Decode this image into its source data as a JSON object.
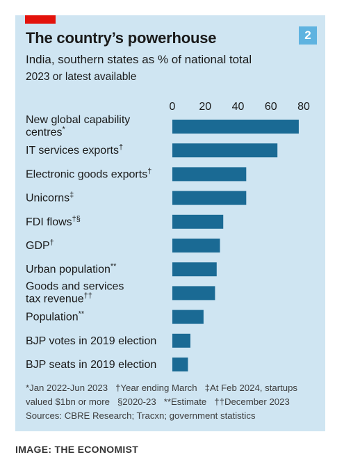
{
  "header": {
    "title": "The country’s powerhouse",
    "subtitle": "India, southern states as % of national total",
    "period": "2023 or latest available",
    "badge": "2"
  },
  "chart_data": {
    "type": "bar",
    "orientation": "horizontal",
    "title": "The country’s powerhouse",
    "subtitle": "India, southern states as % of national total",
    "xlim": [
      0,
      80
    ],
    "x_ticks": [
      0,
      20,
      40,
      60,
      80
    ],
    "grid": false,
    "categories": [
      {
        "lines": [
          "New global capability",
          "centres*"
        ]
      },
      {
        "lines": [
          "IT services exports†"
        ]
      },
      {
        "lines": [
          "Electronic goods exports†"
        ]
      },
      {
        "lines": [
          "Unicorns‡"
        ]
      },
      {
        "lines": [
          "FDI flows†§"
        ]
      },
      {
        "lines": [
          "GDP†"
        ]
      },
      {
        "lines": [
          "Urban population**"
        ]
      },
      {
        "lines": [
          "Goods and services",
          "tax revenue††"
        ]
      },
      {
        "lines": [
          "Population**"
        ]
      },
      {
        "lines": [
          "BJP votes in 2019 election"
        ]
      },
      {
        "lines": [
          "BJP seats in 2019 election"
        ]
      }
    ],
    "values": [
      77,
      64,
      45,
      45,
      31,
      29,
      27,
      26,
      19,
      11,
      9.5
    ],
    "bar_color": "#1a6a94"
  },
  "notes": [
    "*Jan 2022-Jun 2023",
    "†Year ending March",
    "‡At Feb 2024, startups valued $1bn or more",
    "§2020-23",
    "**Estimate",
    "††December 2023"
  ],
  "source": "Sources: CBRE Research; Tracxn; government statistics",
  "credit": "IMAGE: THE ECONOMIST"
}
